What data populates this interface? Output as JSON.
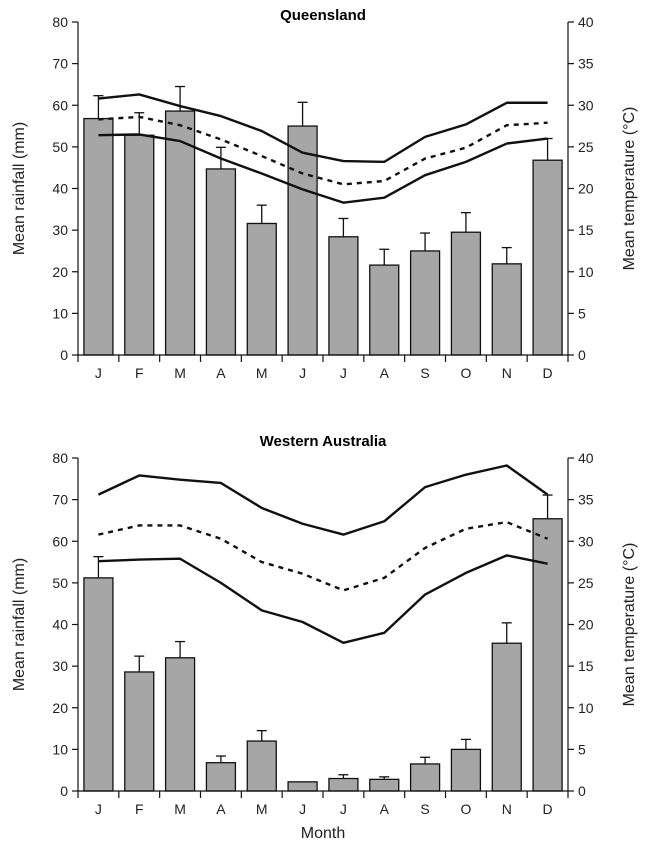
{
  "chart_data": [
    {
      "type": "bar",
      "title": "Queensland",
      "categories": [
        "J",
        "F",
        "M",
        "A",
        "M",
        "J",
        "J",
        "A",
        "S",
        "O",
        "N",
        "D"
      ],
      "ylabel": "Mean rainfall (mm)",
      "y2label": "Mean temperature (°C)",
      "xlabel": "",
      "ylim": [
        0,
        80
      ],
      "y2lim": [
        0,
        40
      ],
      "yticks": [
        "0",
        "10",
        "20",
        "30",
        "40",
        "50",
        "60",
        "70",
        "80"
      ],
      "y2ticks": [
        "0",
        "5",
        "10",
        "15",
        "20",
        "25",
        "30",
        "35",
        "40"
      ],
      "bar_color": "#a6a6a6",
      "series": [
        {
          "kind": "bar",
          "axis": "left",
          "values": [
            56.8,
            52.8,
            58.6,
            44.7,
            31.6,
            55.0,
            28.4,
            21.6,
            25.0,
            29.5,
            21.9,
            46.8
          ],
          "errors": [
            5.5,
            5.4,
            5.9,
            5.2,
            4.4,
            5.7,
            4.4,
            3.8,
            4.3,
            4.7,
            3.9,
            5.2
          ]
        },
        {
          "kind": "line",
          "style": "solid",
          "axis": "right",
          "values": [
            30.8,
            31.3,
            29.9,
            28.7,
            26.9,
            24.3,
            23.3,
            23.2,
            26.2,
            27.7,
            30.3,
            30.3
          ]
        },
        {
          "kind": "line",
          "style": "dashed",
          "axis": "right",
          "values": [
            28.3,
            28.6,
            27.6,
            25.9,
            23.9,
            21.8,
            20.5,
            20.9,
            23.6,
            24.9,
            27.6,
            27.9
          ]
        },
        {
          "kind": "line",
          "style": "solid",
          "axis": "right",
          "values": [
            26.4,
            26.5,
            25.7,
            23.6,
            21.8,
            19.9,
            18.3,
            18.9,
            21.6,
            23.2,
            25.4,
            26.0
          ]
        }
      ]
    },
    {
      "type": "bar",
      "title": "Western Australia",
      "categories": [
        "J",
        "F",
        "M",
        "A",
        "M",
        "J",
        "J",
        "A",
        "S",
        "O",
        "N",
        "D"
      ],
      "ylabel": "Mean rainfall (mm)",
      "y2label": "Mean temperature (°C)",
      "xlabel": "Month",
      "ylim": [
        0,
        80
      ],
      "y2lim": [
        0,
        40
      ],
      "yticks": [
        "0",
        "10",
        "20",
        "30",
        "40",
        "50",
        "60",
        "70",
        "80"
      ],
      "y2ticks": [
        "0",
        "5",
        "10",
        "15",
        "20",
        "25",
        "30",
        "35",
        "40"
      ],
      "bar_color": "#a6a6a6",
      "series": [
        {
          "kind": "bar",
          "axis": "left",
          "values": [
            51.2,
            28.6,
            32.0,
            6.8,
            12.0,
            2.2,
            3.0,
            2.8,
            6.5,
            10.0,
            35.5,
            65.4
          ],
          "errors": [
            5.1,
            3.8,
            3.9,
            1.6,
            2.5,
            0.0,
            0.9,
            0.6,
            1.6,
            2.4,
            4.9,
            5.7
          ]
        },
        {
          "kind": "line",
          "style": "solid",
          "axis": "right",
          "values": [
            35.6,
            37.9,
            37.4,
            37.0,
            34.0,
            32.1,
            30.8,
            32.4,
            36.5,
            38.0,
            39.1,
            35.6
          ]
        },
        {
          "kind": "line",
          "style": "dashed",
          "axis": "right",
          "values": [
            30.8,
            31.9,
            31.9,
            30.3,
            27.5,
            26.1,
            24.1,
            25.6,
            29.2,
            31.5,
            32.3,
            30.3
          ]
        },
        {
          "kind": "line",
          "style": "solid",
          "axis": "right",
          "values": [
            27.6,
            27.8,
            27.9,
            25.0,
            21.7,
            20.3,
            17.8,
            19.0,
            23.6,
            26.2,
            28.3,
            27.3
          ]
        }
      ]
    }
  ]
}
